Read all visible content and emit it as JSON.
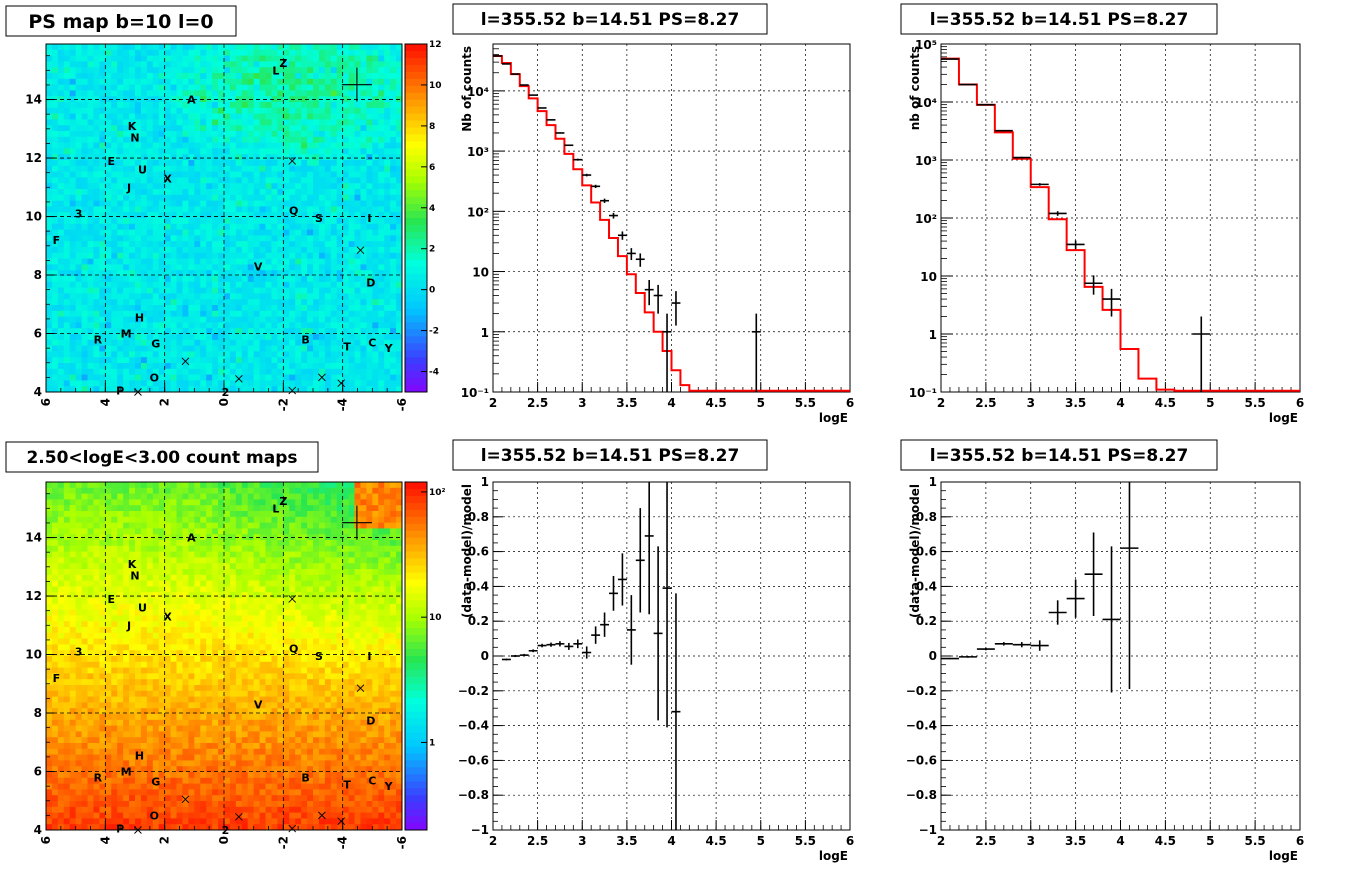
{
  "chart_data": [
    {
      "type": "heatmap",
      "id": "map1",
      "title": "PS map b=10 l=0",
      "x_range": [
        6,
        -6
      ],
      "y_range": [
        4,
        15.9
      ],
      "x_ticks": [
        "6",
        "4",
        "2",
        "0",
        "-2",
        "-4",
        "-6"
      ],
      "y_ticks": [
        "4",
        "6",
        "8",
        "10",
        "12",
        "14"
      ],
      "colorbar": {
        "scale": "linear",
        "range": [
          -5,
          12
        ],
        "ticks": [
          "12",
          "10",
          "8",
          "6",
          "4",
          "2",
          "0",
          "-2",
          "-4"
        ]
      },
      "grid": true
    },
    {
      "type": "line",
      "id": "spec1",
      "title": "l=355.52 b=14.51 PS=8.27",
      "xlabel": "logE",
      "ylabel": "Nb of counts",
      "xlim": [
        2,
        6
      ],
      "ylim": [
        0.1,
        60000
      ],
      "yscale": "log",
      "x_ticks": [
        "2",
        "2.5",
        "3",
        "3.5",
        "4",
        "4.5",
        "5",
        "5.5",
        "6"
      ],
      "y_ticks": [
        "10⁻¹",
        "1",
        "10",
        "10²",
        "10³",
        "10⁴"
      ],
      "grid": true,
      "data_points": [
        {
          "x": 2.05,
          "y": 38000
        },
        {
          "x": 2.15,
          "y": 28000
        },
        {
          "x": 2.25,
          "y": 19000
        },
        {
          "x": 2.35,
          "y": 12500
        },
        {
          "x": 2.45,
          "y": 8500
        },
        {
          "x": 2.55,
          "y": 5200
        },
        {
          "x": 2.65,
          "y": 3300
        },
        {
          "x": 2.75,
          "y": 2000
        },
        {
          "x": 2.85,
          "y": 1250
        },
        {
          "x": 2.95,
          "y": 720
        },
        {
          "x": 3.05,
          "y": 400
        },
        {
          "x": 3.15,
          "y": 260
        },
        {
          "x": 3.25,
          "y": 150
        },
        {
          "x": 3.35,
          "y": 85
        },
        {
          "x": 3.45,
          "y": 40
        },
        {
          "x": 3.55,
          "y": 20
        },
        {
          "x": 3.65,
          "y": 16
        },
        {
          "x": 3.75,
          "y": 5
        },
        {
          "x": 3.85,
          "y": 4
        },
        {
          "x": 3.95,
          "y": 1
        },
        {
          "x": 4.05,
          "y": 3
        },
        {
          "x": 4.95,
          "y": 1
        }
      ],
      "model_steps": [
        38000,
        29000,
        19000,
        12000,
        7500,
        4600,
        2700,
        1600,
        900,
        500,
        270,
        140,
        72,
        36,
        18,
        9,
        4.4,
        2.1,
        1.0,
        0.48,
        0.23,
        0.13
      ]
    },
    {
      "type": "line",
      "id": "spec2",
      "title": "l=355.52 b=14.51 PS=8.27",
      "xlabel": "logE",
      "ylabel": "nb of counts",
      "xlim": [
        2,
        6
      ],
      "ylim": [
        0.1,
        100000
      ],
      "yscale": "log",
      "x_ticks": [
        "2",
        "2.5",
        "3",
        "3.5",
        "4",
        "4.5",
        "5",
        "5.5",
        "6"
      ],
      "y_ticks": [
        "10⁻¹",
        "1",
        "10",
        "10²",
        "10³",
        "10⁴",
        "10⁵"
      ],
      "grid": true,
      "data_points": [
        {
          "x": 2.1,
          "y": 55000
        },
        {
          "x": 2.3,
          "y": 20000
        },
        {
          "x": 2.5,
          "y": 9000
        },
        {
          "x": 2.7,
          "y": 3200
        },
        {
          "x": 2.9,
          "y": 1100
        },
        {
          "x": 3.1,
          "y": 380
        },
        {
          "x": 3.3,
          "y": 120
        },
        {
          "x": 3.5,
          "y": 35
        },
        {
          "x": 3.7,
          "y": 7.5
        },
        {
          "x": 3.9,
          "y": 4
        },
        {
          "x": 4.9,
          "y": 1
        }
      ],
      "model_steps": [
        56000,
        20000,
        8900,
        3000,
        1050,
        340,
        95,
        28,
        6.5,
        2.6,
        0.55,
        0.17,
        0.11
      ]
    },
    {
      "type": "heatmap",
      "id": "map2",
      "title": "2.50<logE<3.00 count maps",
      "x_range": [
        6,
        -6
      ],
      "y_range": [
        4,
        15.9
      ],
      "x_ticks": [
        "6",
        "4",
        "2",
        "0",
        "-2",
        "-4",
        "-6"
      ],
      "y_ticks": [
        "4",
        "6",
        "8",
        "10",
        "12",
        "14"
      ],
      "colorbar": {
        "scale": "log",
        "range": [
          0.2,
          120
        ],
        "ticks": [
          "10²",
          "10",
          "1"
        ]
      },
      "grid": true
    },
    {
      "type": "scatter",
      "id": "res1",
      "title": "l=355.52 b=14.51 PS=8.27",
      "xlabel": "logE",
      "ylabel": "(data-model)/model",
      "xlim": [
        2,
        6
      ],
      "ylim": [
        -1,
        1
      ],
      "x_ticks": [
        "2",
        "2.5",
        "3",
        "3.5",
        "4",
        "4.5",
        "5",
        "5.5",
        "6"
      ],
      "y_ticks": [
        "1",
        "0.8",
        "0.6",
        "0.4",
        "0.2",
        "0",
        "-0.2",
        "-0.4",
        "-0.6",
        "-0.8",
        "-1"
      ],
      "grid": true,
      "data_points": [
        {
          "x": 2.15,
          "y": -0.02,
          "err": 0.005
        },
        {
          "x": 2.25,
          "y": 0.0,
          "err": 0.006
        },
        {
          "x": 2.35,
          "y": 0.005,
          "err": 0.007
        },
        {
          "x": 2.45,
          "y": 0.03,
          "err": 0.008
        },
        {
          "x": 2.55,
          "y": 0.06,
          "err": 0.01
        },
        {
          "x": 2.65,
          "y": 0.065,
          "err": 0.012
        },
        {
          "x": 2.75,
          "y": 0.07,
          "err": 0.015
        },
        {
          "x": 2.85,
          "y": 0.055,
          "err": 0.02
        },
        {
          "x": 2.95,
          "y": 0.07,
          "err": 0.025
        },
        {
          "x": 3.05,
          "y": 0.02,
          "err": 0.035
        },
        {
          "x": 3.15,
          "y": 0.12,
          "err": 0.05
        },
        {
          "x": 3.25,
          "y": 0.18,
          "err": 0.07
        },
        {
          "x": 3.35,
          "y": 0.36,
          "err": 0.1
        },
        {
          "x": 3.45,
          "y": 0.44,
          "err": 0.15
        },
        {
          "x": 3.55,
          "y": 0.15,
          "err": 0.2
        },
        {
          "x": 3.65,
          "y": 0.55,
          "err": 0.3
        },
        {
          "x": 3.75,
          "y": 0.69,
          "err": 0.45
        },
        {
          "x": 3.85,
          "y": 0.13,
          "err": 0.5
        },
        {
          "x": 3.95,
          "y": 0.39,
          "err": 0.8
        },
        {
          "x": 4.05,
          "y": -0.32,
          "err": 0.68
        }
      ]
    },
    {
      "type": "scatter",
      "id": "res2",
      "title": "l=355.52 b=14.51 PS=8.27",
      "xlabel": "logE",
      "ylabel": "(data-model)/model",
      "xlim": [
        2,
        6
      ],
      "ylim": [
        -1,
        1
      ],
      "x_ticks": [
        "2",
        "2.5",
        "3",
        "3.5",
        "4",
        "4.5",
        "5",
        "5.5",
        "6"
      ],
      "y_ticks": [
        "1",
        "0.8",
        "0.6",
        "0.4",
        "0.2",
        "0",
        "-0.2",
        "-0.4",
        "-0.6",
        "-0.8",
        "-1"
      ],
      "grid": true,
      "data_points": [
        {
          "x": 2.1,
          "y": -0.015,
          "err": 0.004
        },
        {
          "x": 2.3,
          "y": -0.005,
          "err": 0.005
        },
        {
          "x": 2.5,
          "y": 0.04,
          "err": 0.007
        },
        {
          "x": 2.7,
          "y": 0.07,
          "err": 0.01
        },
        {
          "x": 2.9,
          "y": 0.065,
          "err": 0.015
        },
        {
          "x": 3.1,
          "y": 0.06,
          "err": 0.03
        },
        {
          "x": 3.3,
          "y": 0.25,
          "err": 0.07
        },
        {
          "x": 3.5,
          "y": 0.33,
          "err": 0.11
        },
        {
          "x": 3.7,
          "y": 0.47,
          "err": 0.24
        },
        {
          "x": 3.9,
          "y": 0.21,
          "err": 0.42
        },
        {
          "x": 4.1,
          "y": 0.62,
          "err": 0.81
        }
      ]
    }
  ],
  "sources": [
    {
      "name": "Z",
      "l": -2.0,
      "b": 15.25
    },
    {
      "name": "L",
      "l": -1.75,
      "b": 15.0
    },
    {
      "name": "A",
      "l": 1.1,
      "b": 14.0
    },
    {
      "name": "K",
      "l": 3.1,
      "b": 13.1
    },
    {
      "name": "N",
      "l": 3.0,
      "b": 12.7
    },
    {
      "name": "E",
      "l": 3.8,
      "b": 11.9
    },
    {
      "name": "U",
      "l": 2.75,
      "b": 11.6
    },
    {
      "name": "X",
      "l": 1.9,
      "b": 11.3
    },
    {
      "name": "J",
      "l": 3.2,
      "b": 11.0
    },
    {
      "name": "3",
      "l": 4.9,
      "b": 10.1
    },
    {
      "name": "Q",
      "l": -2.35,
      "b": 10.2
    },
    {
      "name": "S",
      "l": -3.2,
      "b": 9.95
    },
    {
      "name": "I",
      "l": -4.9,
      "b": 9.95
    },
    {
      "name": "F",
      "l": 5.65,
      "b": 9.2
    },
    {
      "name": "V",
      "l": -1.15,
      "b": 8.3
    },
    {
      "name": "D",
      "l": -4.95,
      "b": 7.75
    },
    {
      "name": "H",
      "l": 2.85,
      "b": 6.55
    },
    {
      "name": "M",
      "l": 3.3,
      "b": 6.0
    },
    {
      "name": "R",
      "l": 4.25,
      "b": 5.8
    },
    {
      "name": "G",
      "l": 2.3,
      "b": 5.65
    },
    {
      "name": "B",
      "l": -2.75,
      "b": 5.8
    },
    {
      "name": "C",
      "l": -5.0,
      "b": 5.7
    },
    {
      "name": "T",
      "l": -4.15,
      "b": 5.55
    },
    {
      "name": "Y",
      "l": -5.55,
      "b": 5.5
    },
    {
      "name": "O",
      "l": 2.35,
      "b": 4.5
    },
    {
      "name": "P",
      "l": 3.5,
      "b": 4.05
    },
    {
      "name": "2",
      "l": -0.05,
      "b": 4.0
    }
  ],
  "markers": [
    {
      "l": 2.9,
      "b": 4.0
    },
    {
      "l": 1.3,
      "b": 5.05
    },
    {
      "l": -0.5,
      "b": 4.45
    },
    {
      "l": -2.3,
      "b": 4.05
    },
    {
      "l": -3.3,
      "b": 4.5
    },
    {
      "l": -3.95,
      "b": 4.3
    },
    {
      "l": -2.3,
      "b": 11.9
    },
    {
      "l": -4.6,
      "b": 8.85
    }
  ],
  "ps_position": {
    "l": -4.48,
    "b": 14.51
  }
}
